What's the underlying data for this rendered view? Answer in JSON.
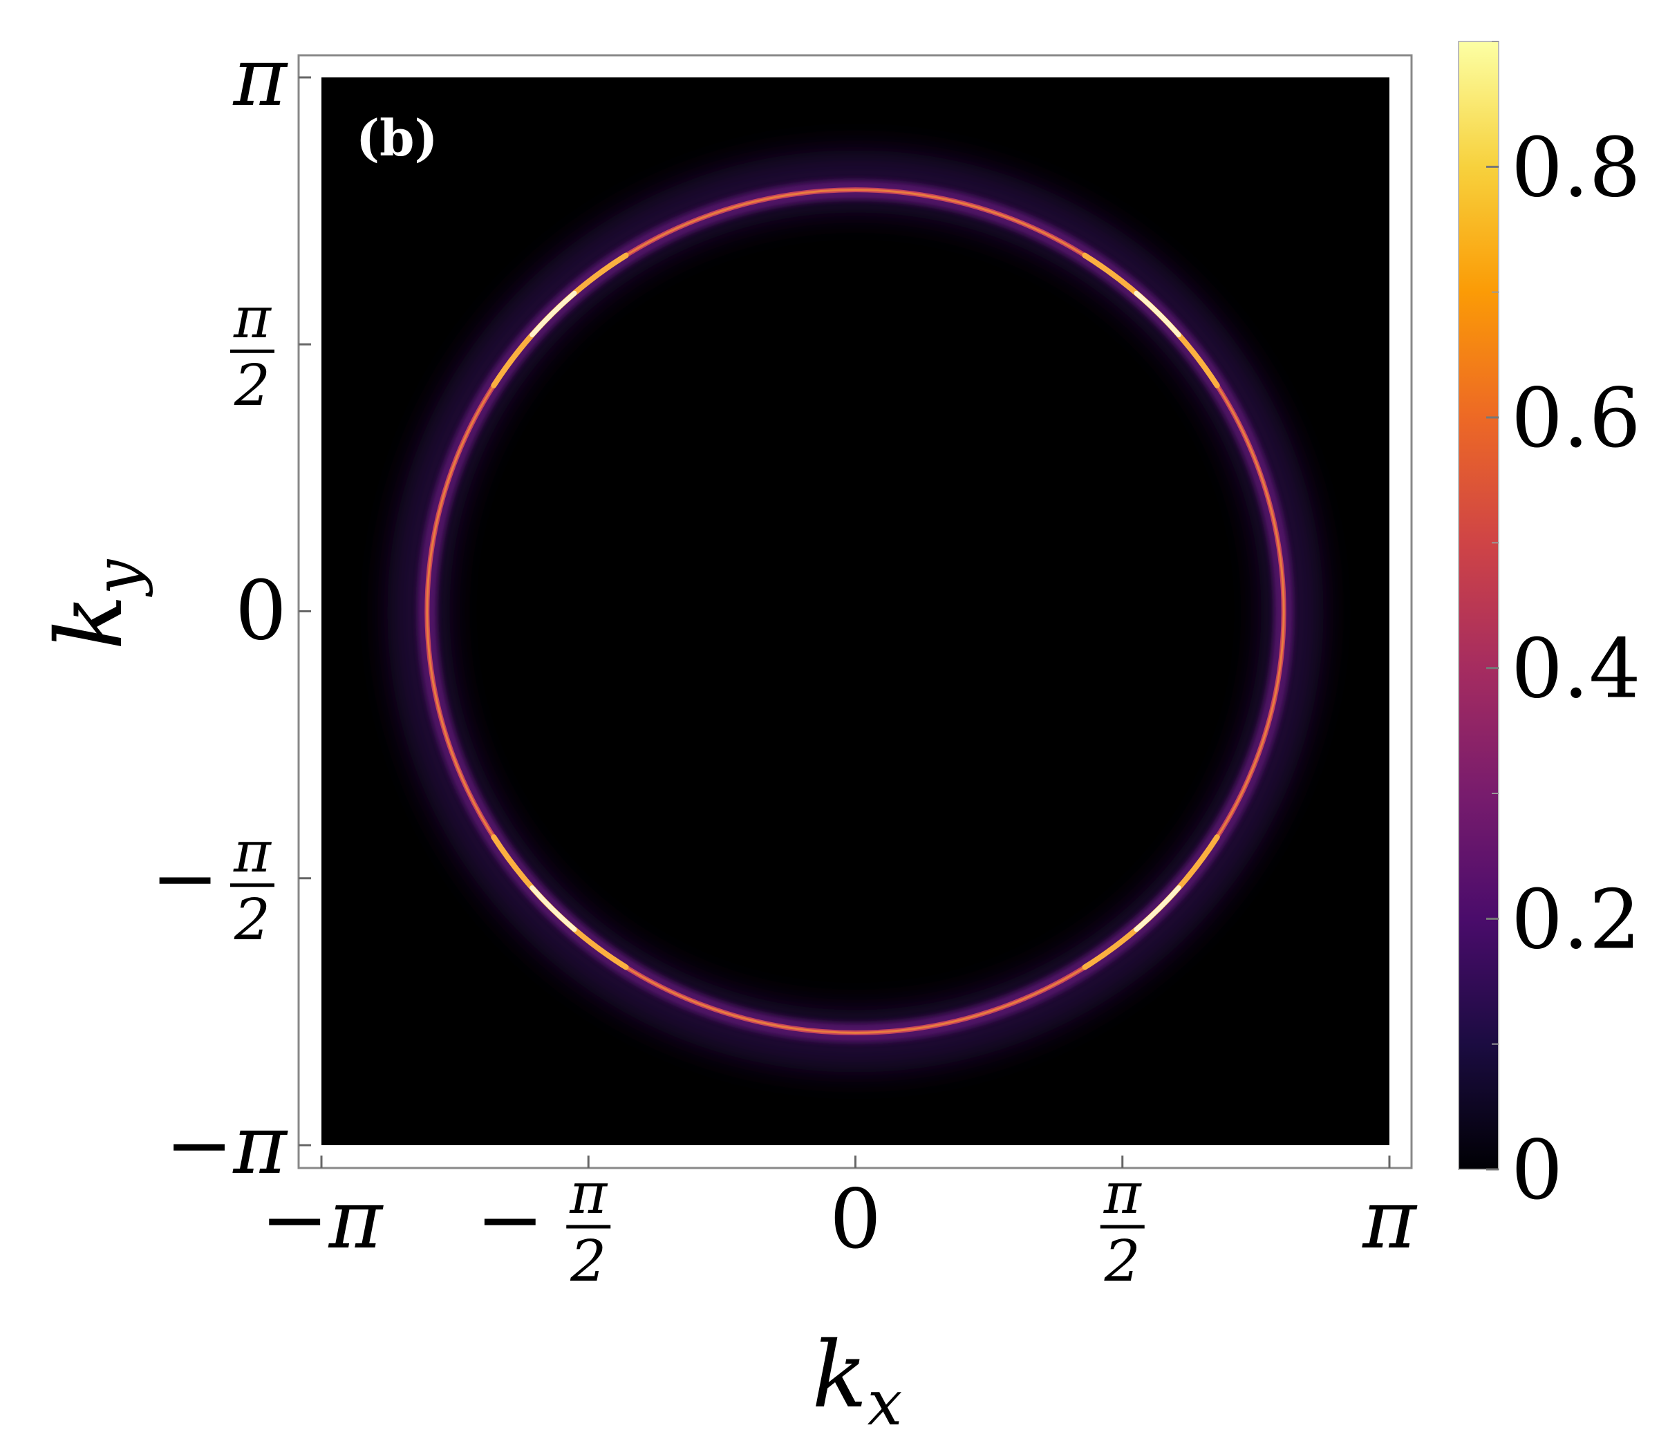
{
  "chart_data": {
    "type": "heatmap",
    "panel_label": "(b)",
    "xlabel": "k",
    "xlabel_sub": "x",
    "ylabel": "k",
    "ylabel_sub": "y",
    "xlim": [
      -3.14159,
      3.14159
    ],
    "ylim": [
      -3.14159,
      3.14159
    ],
    "x_ticks": [
      {
        "value": -3.14159,
        "sign": "−",
        "num": "π",
        "den": ""
      },
      {
        "value": -1.5708,
        "sign": "−",
        "num": "π",
        "den": "2"
      },
      {
        "value": 0,
        "sign": "",
        "num": "0",
        "den": ""
      },
      {
        "value": 1.5708,
        "sign": "",
        "num": "π",
        "den": "2"
      },
      {
        "value": 3.14159,
        "sign": "",
        "num": "π",
        "den": ""
      }
    ],
    "y_ticks": [
      {
        "value": 3.14159,
        "sign": "",
        "num": "π",
        "den": ""
      },
      {
        "value": 1.5708,
        "sign": "",
        "num": "π",
        "den": "2"
      },
      {
        "value": 0,
        "sign": "",
        "num": "0",
        "den": ""
      },
      {
        "value": -1.5708,
        "sign": "−",
        "num": "π",
        "den": "2"
      },
      {
        "value": -3.14159,
        "sign": "−",
        "num": "π",
        "den": ""
      }
    ],
    "ring": {
      "center": [
        0,
        0
      ],
      "radius_x": 2.52,
      "radius_y": 2.48,
      "peak_intensity": 0.9,
      "hotspot_angles_deg": [
        45,
        135,
        225,
        315
      ]
    },
    "colorbar": {
      "min": 0,
      "max": 0.9,
      "tick_values": [
        0,
        0.2,
        0.4,
        0.6,
        0.8
      ],
      "tick_labels": [
        "0",
        "0.2",
        "0.4",
        "0.6",
        "0.8"
      ],
      "colormap": "inferno",
      "stops": [
        "#000004",
        "#1b0c41",
        "#4a0c6b",
        "#781c6d",
        "#a52c60",
        "#cf4446",
        "#ed6925",
        "#fb9b06",
        "#f7d13d",
        "#fcffa4"
      ]
    }
  }
}
